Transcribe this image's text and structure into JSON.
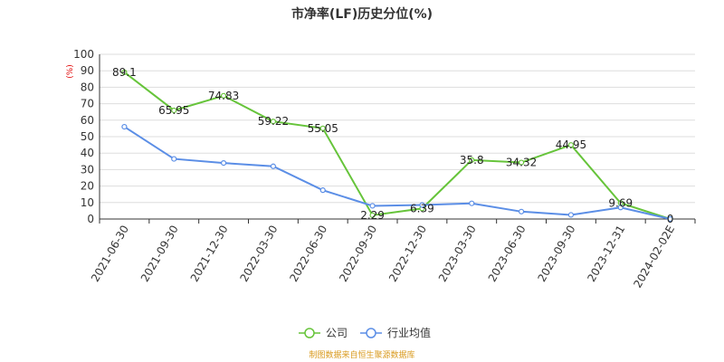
{
  "chart_data": {
    "type": "line",
    "title": "市净率(LF)历史分位(%)",
    "unit_label": "(%)",
    "categories": [
      "2021-06-30",
      "2021-09-30",
      "2021-12-30",
      "2022-03-30",
      "2022-06-30",
      "2022-09-30",
      "2022-12-30",
      "2023-03-30",
      "2023-06-30",
      "2023-09-30",
      "2023-12-31",
      "2024-02-02E"
    ],
    "ylim": [
      0,
      100
    ],
    "yticks": [
      0,
      10,
      20,
      30,
      40,
      50,
      60,
      70,
      80,
      90,
      100
    ],
    "grid": true,
    "legend_position": "bottom",
    "series": [
      {
        "name": "公司",
        "color": "#66c43a",
        "values": [
          89.1,
          65.95,
          74.83,
          59.22,
          55.05,
          2.29,
          6.39,
          35.8,
          34.32,
          44.95,
          9.69,
          0
        ],
        "labels": [
          "89.1",
          "65.95",
          "74.83",
          "59.22",
          "55.05",
          "2.29",
          "6.39",
          "35.8",
          "34.32",
          "44.95",
          "9.69",
          "0"
        ]
      },
      {
        "name": "行业均值",
        "color": "#5b8ee6",
        "values": [
          56,
          36.5,
          34,
          32,
          17.5,
          8,
          8.5,
          9.5,
          4.5,
          2.5,
          7,
          0
        ]
      }
    ]
  },
  "source_text": "制图数据来自恒生聚源数据库"
}
